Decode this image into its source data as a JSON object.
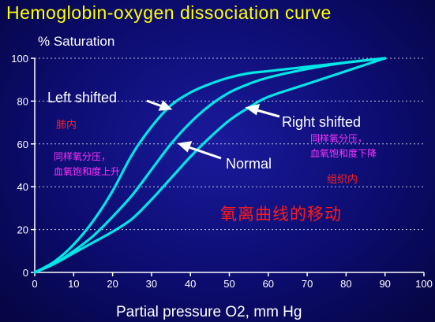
{
  "chart_data": {
    "type": "line",
    "title": "Hemoglobin-oxygen  dissociation curve",
    "ylabel": "% Saturation",
    "xlabel": "Partial pressure O2, mm Hg",
    "xlim": [
      0,
      100
    ],
    "ylim": [
      0,
      100
    ],
    "x_ticks": [
      "0",
      "10",
      "20",
      "30",
      "40",
      "50",
      "60",
      "70",
      "80",
      "90",
      "100"
    ],
    "y_ticks": [
      "0",
      "20",
      "40",
      "60",
      "80",
      "100"
    ],
    "grid": "horizontal dotted",
    "line_color": "#00e5e5",
    "series": [
      {
        "name": "Left shifted",
        "x": [
          0,
          5,
          10,
          15,
          20,
          25,
          30,
          35,
          40,
          45,
          50,
          55,
          60,
          70,
          80,
          90
        ],
        "y": [
          0,
          5,
          13,
          24,
          38,
          55,
          68,
          78,
          84,
          88,
          91,
          93,
          94,
          96,
          98,
          100
        ]
      },
      {
        "name": "Normal",
        "x": [
          0,
          5,
          10,
          15,
          20,
          25,
          30,
          35,
          40,
          45,
          50,
          55,
          60,
          70,
          80,
          90
        ],
        "y": [
          0,
          4,
          10,
          17,
          26,
          36,
          48,
          60,
          70,
          78,
          84,
          88,
          91,
          95,
          98,
          100
        ]
      },
      {
        "name": "Right shifted",
        "x": [
          0,
          5,
          10,
          15,
          20,
          25,
          30,
          35,
          40,
          45,
          50,
          55,
          60,
          70,
          80,
          90
        ],
        "y": [
          0,
          4,
          9,
          14,
          19,
          25,
          34,
          44,
          54,
          63,
          71,
          77,
          82,
          88,
          94,
          100
        ]
      }
    ],
    "annotations": [
      {
        "text": "Left shifted",
        "color": "#ffffff"
      },
      {
        "text": "Right shifted",
        "color": "#ffffff"
      },
      {
        "text": "Normal",
        "color": "#ffffff"
      },
      {
        "text": "肺内",
        "color": "#ff2020"
      },
      {
        "text": "同样氧分压，",
        "color": "#ff33ff"
      },
      {
        "text": "血氧饱和度上升",
        "color": "#ff33ff"
      },
      {
        "text": "同样氧分压，",
        "color": "#ff33ff"
      },
      {
        "text": "血氧饱和度下降",
        "color": "#ff33ff"
      },
      {
        "text": "组织内",
        "color": "#ff2020"
      },
      {
        "text": "氧离曲线的移动",
        "color": "#ff1a1a"
      }
    ]
  }
}
